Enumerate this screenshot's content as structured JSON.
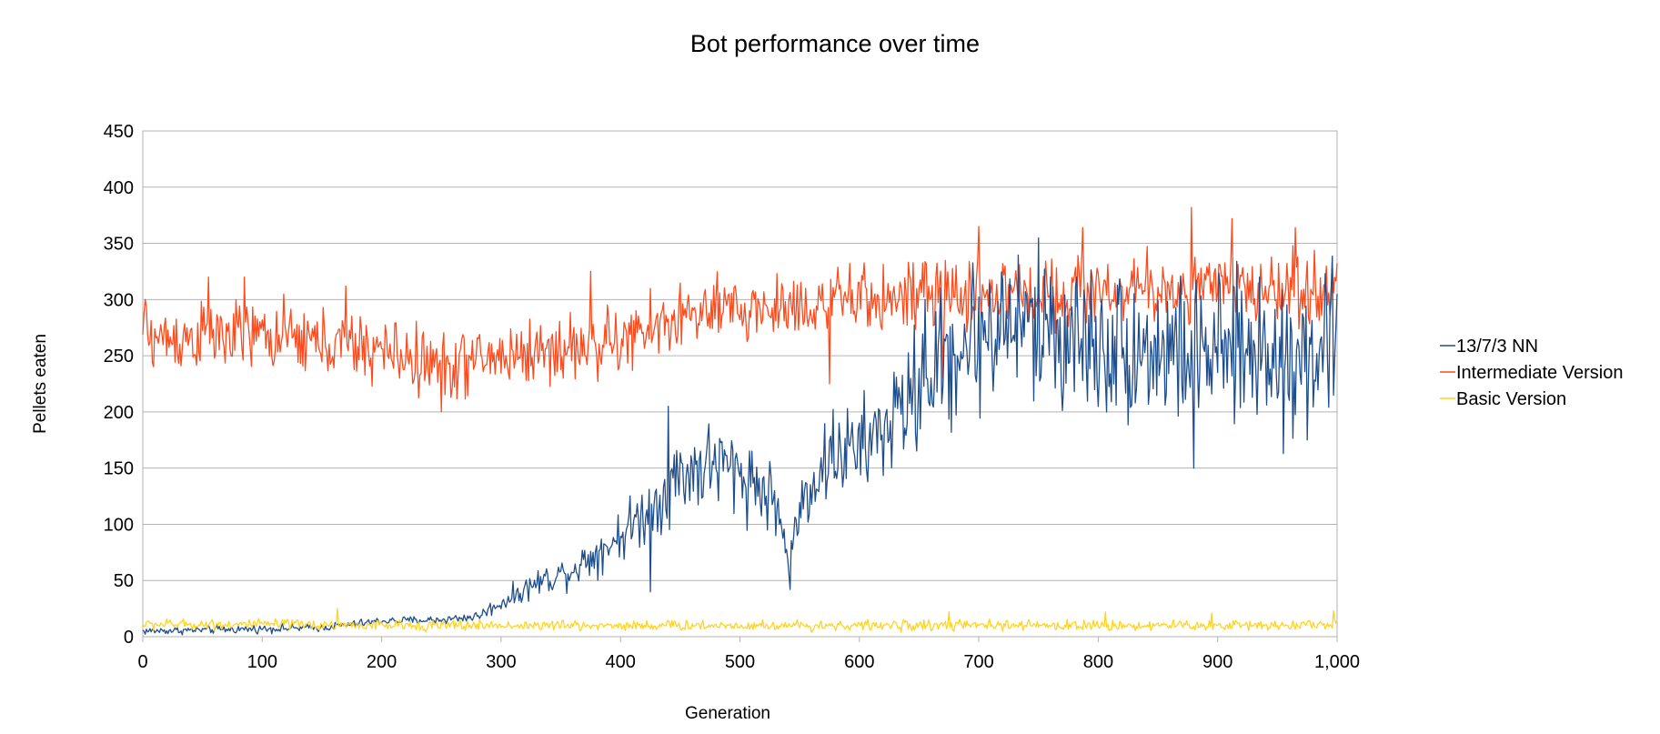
{
  "chart_data": {
    "type": "line",
    "title": "Bot performance over time",
    "xlabel": "Generation",
    "ylabel": "Pellets eaten",
    "xlim": [
      0,
      1000
    ],
    "ylim": [
      0,
      450
    ],
    "x_ticks": [
      0,
      100,
      200,
      300,
      400,
      500,
      600,
      700,
      800,
      900,
      1000
    ],
    "x_tick_labels": [
      "0",
      "100",
      "200",
      "300",
      "400",
      "500",
      "600",
      "700",
      "800",
      "900",
      "1,000"
    ],
    "y_ticks": [
      0,
      50,
      100,
      150,
      200,
      250,
      300,
      350,
      400,
      450
    ],
    "y_tick_labels": [
      "0",
      "50",
      "100",
      "150",
      "200",
      "250",
      "300",
      "350",
      "400",
      "450"
    ],
    "grid": "horizontal",
    "legend_position": "right",
    "colors": {
      "nn": "#1f4e8c",
      "intermediate": "#ff4a1c",
      "basic": "#ffd320",
      "grid": "#b3b3b3",
      "frame": "#b3b3b3"
    },
    "series": [
      {
        "name": "13/7/3 NN",
        "color": "#1f4e8c",
        "noise": 4,
        "trend": [
          [
            0,
            5
          ],
          [
            50,
            6
          ],
          [
            100,
            7
          ],
          [
            150,
            8
          ],
          [
            200,
            14
          ],
          [
            250,
            15
          ],
          [
            280,
            18
          ],
          [
            300,
            30
          ],
          [
            330,
            48
          ],
          [
            360,
            60
          ],
          [
            400,
            90
          ],
          [
            430,
            120
          ],
          [
            450,
            145
          ],
          [
            480,
            155
          ],
          [
            510,
            140
          ],
          [
            530,
            120
          ],
          [
            540,
            70
          ],
          [
            555,
            130
          ],
          [
            580,
            165
          ],
          [
            600,
            165
          ],
          [
            630,
            195
          ],
          [
            660,
            235
          ],
          [
            700,
            270
          ],
          [
            730,
            280
          ],
          [
            760,
            270
          ],
          [
            800,
            260
          ],
          [
            850,
            255
          ],
          [
            900,
            250
          ],
          [
            950,
            255
          ],
          [
            1000,
            260
          ]
        ],
        "points": [
          [
            440,
            205
          ],
          [
            425,
            40
          ],
          [
            530,
            90
          ],
          [
            542,
            42
          ],
          [
            548,
            90
          ],
          [
            655,
            300
          ],
          [
            720,
            318
          ],
          [
            760,
            320
          ],
          [
            880,
            150
          ],
          [
            935,
            320
          ],
          [
            955,
            163
          ],
          [
            975,
            175
          ],
          [
            995,
            310
          ],
          [
            1000,
            305
          ]
        ]
      },
      {
        "name": "Intermediate Version",
        "color": "#ff4a1c",
        "noise": 26,
        "trend": [
          [
            0,
            265
          ],
          [
            100,
            268
          ],
          [
            200,
            255
          ],
          [
            250,
            240
          ],
          [
            300,
            250
          ],
          [
            400,
            262
          ],
          [
            450,
            285
          ],
          [
            500,
            290
          ],
          [
            600,
            300
          ],
          [
            700,
            305
          ],
          [
            800,
            308
          ],
          [
            900,
            310
          ],
          [
            1000,
            310
          ]
        ],
        "points": [
          [
            2,
            300
          ],
          [
            55,
            320
          ],
          [
            85,
            320
          ],
          [
            170,
            312
          ],
          [
            250,
            200
          ],
          [
            375,
            325
          ],
          [
            670,
            230
          ],
          [
            575,
            225
          ],
          [
            700,
            365
          ],
          [
            787,
            364
          ],
          [
            878,
            382
          ],
          [
            912,
            372
          ],
          [
            965,
            364
          ]
        ]
      },
      {
        "name": "Basic Version",
        "color": "#ffd320",
        "noise": 4,
        "trend": [
          [
            0,
            11
          ],
          [
            100,
            11
          ],
          [
            200,
            10
          ],
          [
            300,
            10
          ],
          [
            400,
            10
          ],
          [
            500,
            10
          ],
          [
            600,
            10
          ],
          [
            700,
            10
          ],
          [
            800,
            10
          ],
          [
            900,
            10
          ],
          [
            1000,
            11
          ]
        ],
        "points": [
          [
            163,
            25
          ],
          [
            675,
            22
          ],
          [
            806,
            22
          ],
          [
            895,
            21
          ],
          [
            997,
            23
          ]
        ]
      }
    ]
  }
}
